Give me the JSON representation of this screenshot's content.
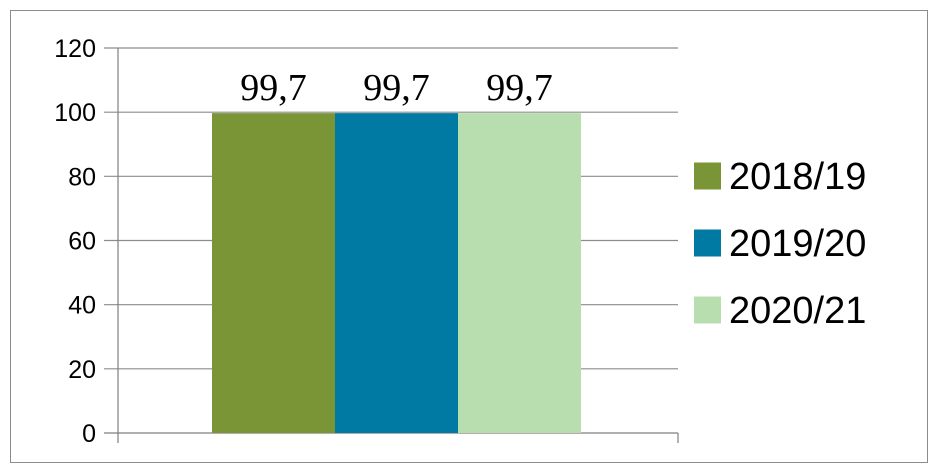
{
  "chart_data": {
    "type": "bar",
    "title": "",
    "xlabel": "",
    "ylabel": "",
    "categories": [
      ""
    ],
    "ylim": [
      0,
      120
    ],
    "yticks": [
      0,
      20,
      40,
      60,
      80,
      100,
      120
    ],
    "grid": true,
    "legend_position": "right",
    "series": [
      {
        "name": "2018/19",
        "values": [
          99.7
        ],
        "label": "99,7",
        "color": "#7a9535"
      },
      {
        "name": "2019/20",
        "values": [
          99.7
        ],
        "label": "99,7",
        "color": "#0079a3"
      },
      {
        "name": "2020/21",
        "values": [
          99.7
        ],
        "label": "99,7",
        "color": "#b8deb0"
      }
    ]
  }
}
